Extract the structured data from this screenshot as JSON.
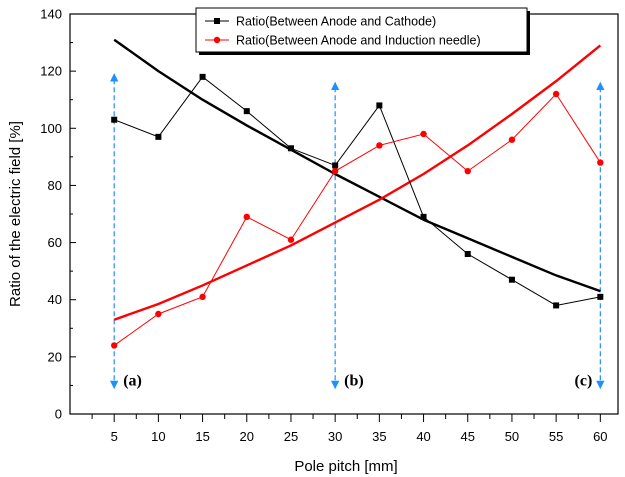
{
  "chart_data": {
    "type": "line",
    "xlabel": "Pole pitch [mm]",
    "ylabel": "Ratio of the electric field [%]",
    "xlim": [
      0,
      62
    ],
    "ylim": [
      0,
      140
    ],
    "xticks": [
      5,
      10,
      15,
      20,
      25,
      30,
      35,
      40,
      45,
      50,
      55,
      60
    ],
    "xticks_minor": [
      2.5,
      7.5,
      12.5,
      17.5,
      22.5,
      27.5,
      32.5,
      37.5,
      42.5,
      47.5,
      52.5,
      57.5
    ],
    "yticks": [
      0,
      20,
      40,
      60,
      80,
      100,
      120,
      140
    ],
    "grid": false,
    "legend_position": "top-center",
    "series": [
      {
        "name": "Ratio(Between Anode and Cathode)",
        "color": "#000000",
        "marker": "square",
        "x": [
          5,
          10,
          15,
          20,
          25,
          30,
          35,
          40,
          45,
          50,
          55,
          60
        ],
        "y": [
          103,
          97,
          118,
          106,
          93,
          87,
          108,
          69,
          56,
          47,
          38,
          41
        ]
      },
      {
        "name": "Ratio(Between Anode and Induction needle)",
        "color": "#ff0000",
        "marker": "circle",
        "x": [
          5,
          10,
          15,
          20,
          25,
          30,
          35,
          40,
          45,
          50,
          55,
          60
        ],
        "y": [
          24,
          35,
          41,
          69,
          61,
          85,
          94,
          98,
          85,
          96,
          112,
          88
        ]
      }
    ],
    "trend_lines": [
      {
        "color": "#000000",
        "x": [
          5,
          10,
          15,
          20,
          25,
          30,
          35,
          40,
          45,
          50,
          55,
          60
        ],
        "y": [
          131,
          120,
          110,
          101,
          92.5,
          84,
          76,
          68,
          61.5,
          55,
          48.5,
          43
        ]
      },
      {
        "color": "#ff0000",
        "x": [
          5,
          10,
          15,
          20,
          25,
          30,
          35,
          40,
          45,
          50,
          55,
          60
        ],
        "y": [
          33,
          38.5,
          45,
          52,
          59,
          67,
          75,
          84,
          94,
          105,
          116.5,
          129
        ]
      }
    ],
    "markers": [
      {
        "label": "(a)",
        "x": 5,
        "y_from": 9,
        "y_to": 119,
        "color": "#1e90ff"
      },
      {
        "label": "(b)",
        "x": 30,
        "y_from": 9,
        "y_to": 116,
        "color": "#1e90ff"
      },
      {
        "label": "(c)",
        "x": 60,
        "y_from": 9,
        "y_to": 116,
        "color": "#1e90ff"
      }
    ]
  }
}
